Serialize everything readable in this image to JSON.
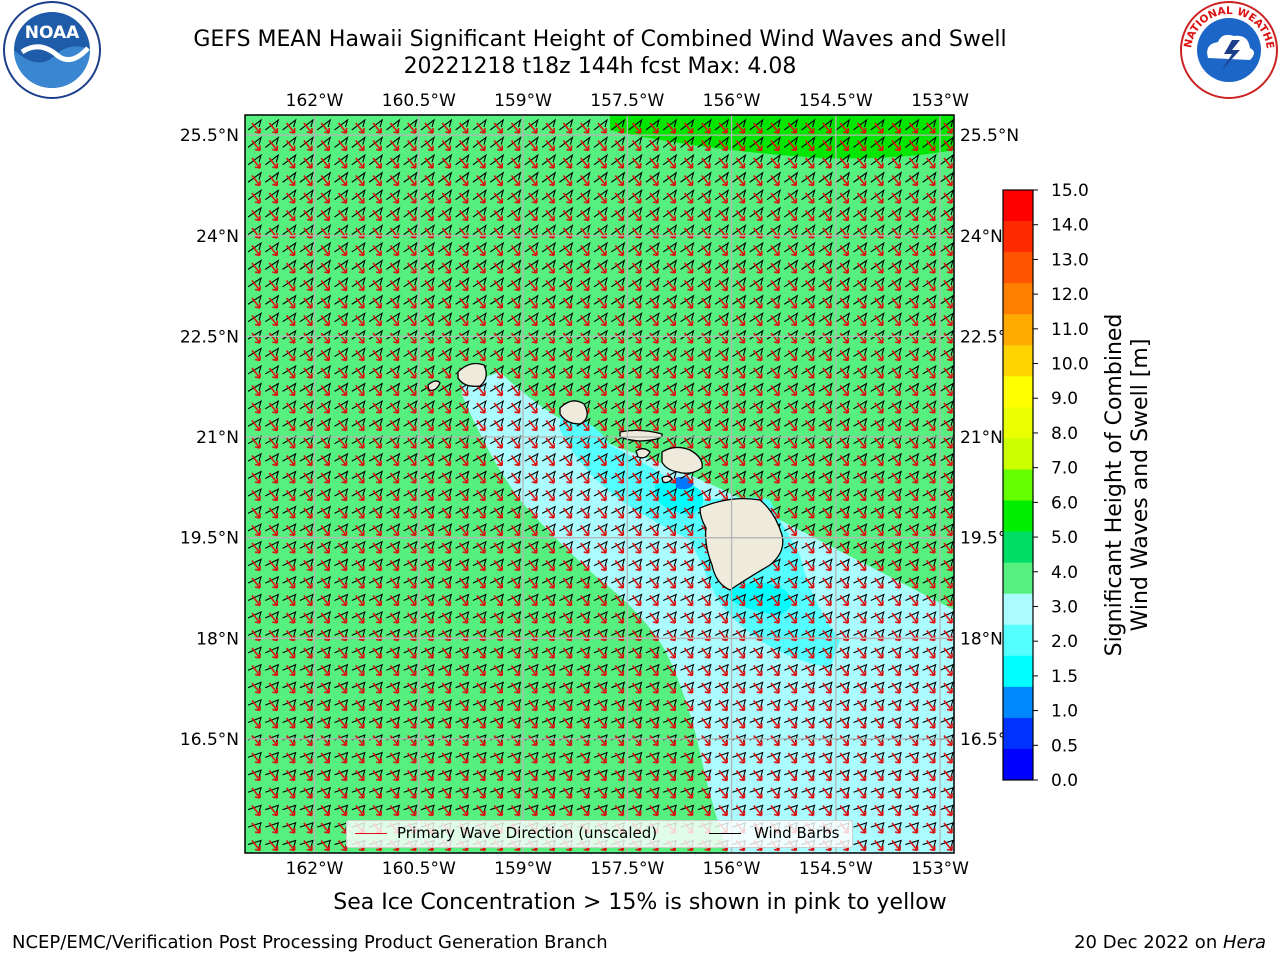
{
  "header": {
    "title_line1": "GEFS MEAN Hawaii Significant Height of Combined Wind Waves and Swell",
    "title_line2": "20221218 t18z 144h fcst   Max: 4.08"
  },
  "logos": {
    "left": {
      "icon": "noaa-logo",
      "text": "NOAA"
    },
    "right": {
      "icon": "nws-logo",
      "text": "NATIONAL WEATHER SERVICE"
    }
  },
  "map": {
    "lon_labels": [
      "162°W",
      "160.5°W",
      "159°W",
      "157.5°W",
      "156°W",
      "154.5°W",
      "153°W"
    ],
    "lat_labels": [
      "25.5°N",
      "24°N",
      "22.5°N",
      "21°N",
      "19.5°N",
      "18°N",
      "16.5°N"
    ],
    "lon_range": [
      -163.0,
      -152.8
    ],
    "lat_range": [
      14.8,
      25.8
    ],
    "legend": {
      "wave_label": "Primary Wave Direction (unscaled)",
      "barb_label": "Wind Barbs",
      "wave_color": "#dd1111",
      "barb_color": "#000000"
    },
    "islands": [
      "Niihau",
      "Kauai",
      "Oahu",
      "Molokai",
      "Lanai",
      "Maui",
      "Kahoolawe",
      "Hawaii"
    ]
  },
  "colorbar": {
    "title_line1": "Significant Height of Combined",
    "title_line2": "Wind Waves and Swell [m]",
    "ticks": [
      "15.0",
      "14.0",
      "13.0",
      "12.0",
      "11.0",
      "10.0",
      "9.0",
      "8.0",
      "7.0",
      "6.0",
      "5.0",
      "4.0",
      "3.0",
      "2.0",
      "1.5",
      "1.0",
      "0.5",
      "0.0"
    ],
    "colors_top_to_bottom": [
      "#ff0000",
      "#ff2a00",
      "#ff5500",
      "#ff7f00",
      "#ffaa00",
      "#ffd400",
      "#ffff00",
      "#eaff00",
      "#ccff00",
      "#66ff00",
      "#00ee00",
      "#00dd66",
      "#55f080",
      "#aafcff",
      "#55ffff",
      "#00ffff",
      "#0088ff",
      "#0033ff",
      "#0000ff"
    ]
  },
  "chart_data": {
    "type": "heatmap",
    "variable": "Significant Height of Combined Wind Waves and Swell",
    "units": "m",
    "max": 4.08,
    "levels": [
      0.0,
      0.5,
      1.0,
      1.5,
      2.0,
      3.0,
      4.0,
      5.0,
      6.0,
      7.0,
      8.0,
      9.0,
      10.0,
      11.0,
      12.0,
      13.0,
      14.0,
      15.0
    ]
  },
  "footer": {
    "caption": "Sea Ice Concentration > 15% is shown in pink to yellow",
    "left": "NCEP/EMC/Verification Post Processing Product Generation Branch",
    "right_prefix": "20 Dec 2022 on ",
    "right_machine": "Hera"
  }
}
